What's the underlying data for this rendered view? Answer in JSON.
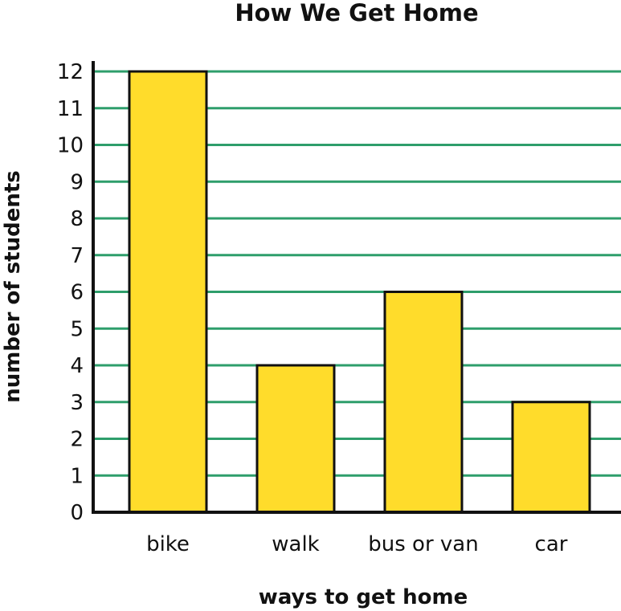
{
  "chart_data": {
    "type": "bar",
    "title": "How We Get Home",
    "xlabel": "ways to get home",
    "ylabel": "number of students",
    "categories": [
      "bike",
      "walk",
      "bus or van",
      "car"
    ],
    "values": [
      12,
      4,
      6,
      3
    ],
    "ylim": [
      0,
      12
    ],
    "yticks": [
      "0",
      "1",
      "2",
      "3",
      "4",
      "5",
      "6",
      "7",
      "8",
      "9",
      "10",
      "11",
      "12"
    ],
    "grid": true,
    "colors": {
      "bar": "#FFDC2B",
      "bar_outline": "#111111",
      "grid": "#2E9E6B",
      "axis": "#111111"
    }
  }
}
